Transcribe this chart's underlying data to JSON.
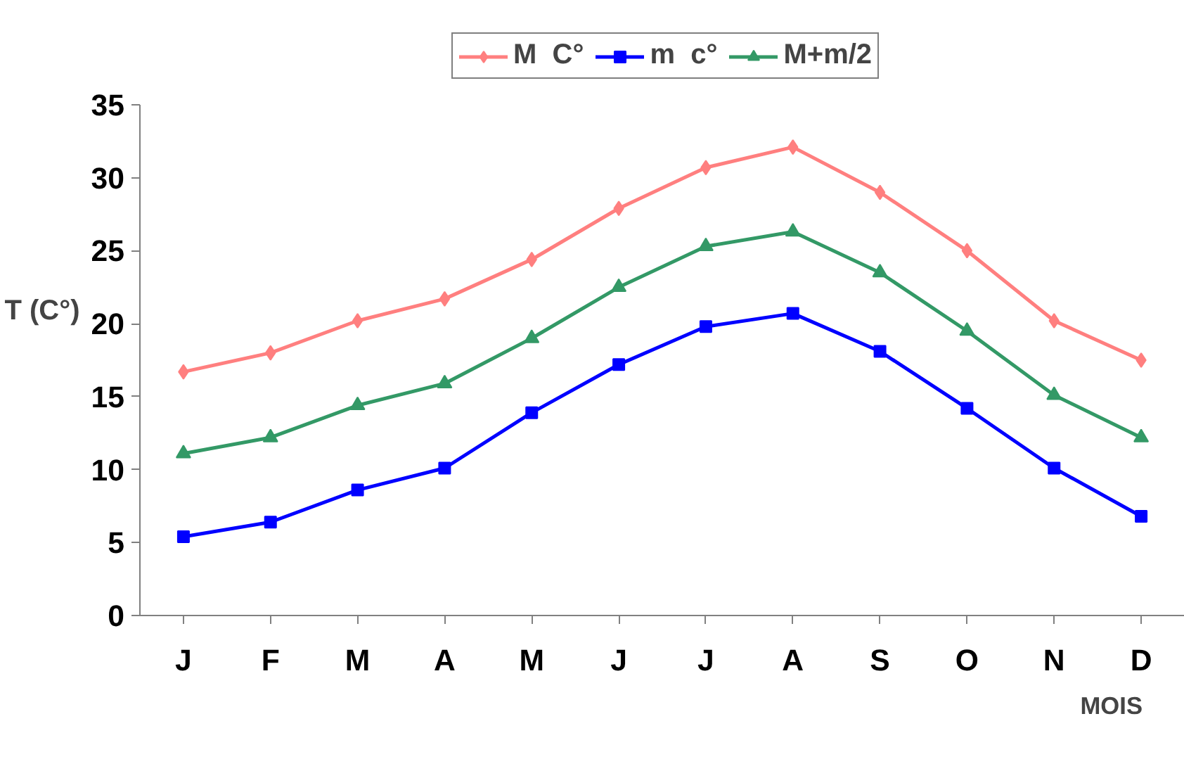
{
  "chart_data": {
    "type": "line",
    "ylabel": "T (C°)",
    "xlabel": "MOIS",
    "categories": [
      "J",
      "F",
      "M",
      "A",
      "M",
      "J",
      "J",
      "A",
      "S",
      "O",
      "N",
      "D"
    ],
    "series": [
      {
        "name": "M  C°",
        "color": "#ff7f7f",
        "marker": "diamond",
        "values": [
          16.7,
          18.0,
          20.2,
          21.7,
          24.4,
          27.9,
          30.7,
          32.1,
          29.0,
          25.0,
          20.2,
          17.5
        ]
      },
      {
        "name": "m  c°",
        "color": "#0000ff",
        "marker": "square",
        "values": [
          5.4,
          6.4,
          8.6,
          10.1,
          13.9,
          17.2,
          19.8,
          20.7,
          18.1,
          14.2,
          10.1,
          6.8
        ]
      },
      {
        "name": "M+m/2",
        "color": "#339966",
        "marker": "triangle",
        "values": [
          11.1,
          12.2,
          14.4,
          15.9,
          19.0,
          22.5,
          25.3,
          26.3,
          23.5,
          19.5,
          15.1,
          12.2
        ]
      }
    ],
    "ylim": [
      0,
      35
    ],
    "yticks": [
      0,
      5,
      10,
      15,
      20,
      25,
      30,
      35
    ],
    "grid": false,
    "legend": "top"
  }
}
